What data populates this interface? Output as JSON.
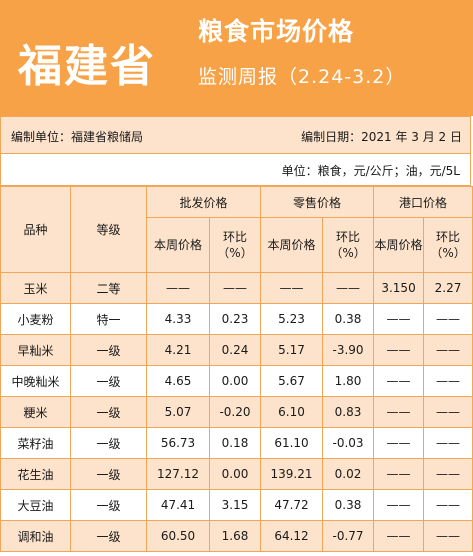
{
  "header": {
    "province": "福建省",
    "title": "粮食市场价格",
    "subtitle": "监测周报（2.24-3.2）"
  },
  "meta": {
    "compiler": "编制单位：福建省粮储局",
    "date": "编制日期：2021 年 3 月 2 日",
    "unit": "单位：粮食，元/公斤；油，元/5L"
  },
  "columns": {
    "variety": "品种",
    "grade": "等级",
    "wholesale": "批发价格",
    "retail": "零售价格",
    "port": "港口价格",
    "this_week": "本周价格",
    "ratio": "环比（%）"
  },
  "rows": [
    {
      "variety": "玉米",
      "grade": "二等",
      "w_price": "——",
      "w_ratio": "——",
      "r_price": "——",
      "r_ratio": "——",
      "p_price": "3.150",
      "p_ratio": "2.27"
    },
    {
      "variety": "小麦粉",
      "grade": "特一",
      "w_price": "4.33",
      "w_ratio": "0.23",
      "r_price": "5.23",
      "r_ratio": "0.38",
      "p_price": "——",
      "p_ratio": "——"
    },
    {
      "variety": "早籼米",
      "grade": "一级",
      "w_price": "4.21",
      "w_ratio": "0.24",
      "r_price": "5.17",
      "r_ratio": "-3.90",
      "p_price": "——",
      "p_ratio": "——"
    },
    {
      "variety": "中晚籼米",
      "grade": "一级",
      "w_price": "4.65",
      "w_ratio": "0.00",
      "r_price": "5.67",
      "r_ratio": "1.80",
      "p_price": "——",
      "p_ratio": "——"
    },
    {
      "variety": "粳米",
      "grade": "一级",
      "w_price": "5.07",
      "w_ratio": "-0.20",
      "r_price": "6.10",
      "r_ratio": "0.83",
      "p_price": "——",
      "p_ratio": "——"
    },
    {
      "variety": "菜籽油",
      "grade": "一级",
      "w_price": "56.73",
      "w_ratio": "0.18",
      "r_price": "61.10",
      "r_ratio": "-0.03",
      "p_price": "——",
      "p_ratio": "——"
    },
    {
      "variety": "花生油",
      "grade": "一级",
      "w_price": "127.12",
      "w_ratio": "0.00",
      "r_price": "139.21",
      "r_ratio": "0.02",
      "p_price": "——",
      "p_ratio": "——"
    },
    {
      "variety": "大豆油",
      "grade": "一级",
      "w_price": "47.41",
      "w_ratio": "3.15",
      "r_price": "47.72",
      "r_ratio": "0.38",
      "p_price": "——",
      "p_ratio": "——"
    },
    {
      "variety": "调和油",
      "grade": "一级",
      "w_price": "60.50",
      "w_ratio": "1.68",
      "r_price": "64.12",
      "r_ratio": "-0.77",
      "p_price": "——",
      "p_ratio": "——"
    }
  ]
}
